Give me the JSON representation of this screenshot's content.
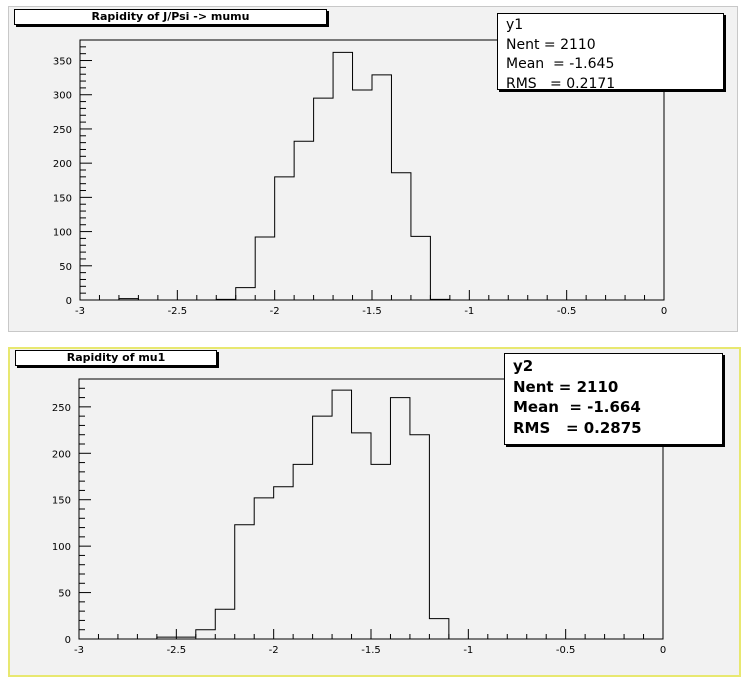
{
  "charts": [
    {
      "title": "Rapidity of J/Psi -> mumu",
      "stats": {
        "name": "y1",
        "nent": "Nent = 2110",
        "mean": "Mean  = -1.645",
        "rms": "RMS   = 0.2171"
      }
    },
    {
      "title": "Rapidity of mu1",
      "stats": {
        "name": "y2",
        "nent": "Nent = 2110",
        "mean": "Mean  = -1.664",
        "rms": "RMS   = 0.2875"
      }
    }
  ],
  "chart_data": [
    {
      "type": "histogram",
      "title": "Rapidity of J/Psi -> mumu",
      "xlabel": "",
      "ylabel": "",
      "xlim": [
        -3,
        0
      ],
      "ylim": [
        0,
        380
      ],
      "bin_edges": [
        -3.0,
        -2.9,
        -2.8,
        -2.7,
        -2.6,
        -2.5,
        -2.4,
        -2.3,
        -2.2,
        -2.1,
        -2.0,
        -1.9,
        -1.8,
        -1.7,
        -1.6,
        -1.5,
        -1.4,
        -1.3,
        -1.2,
        -1.1,
        -1.0,
        -0.9,
        -0.8,
        -0.7,
        -0.6,
        -0.5,
        -0.4,
        -0.3,
        -0.2,
        -0.1,
        0.0
      ],
      "values": [
        0,
        0,
        2,
        0,
        0,
        0,
        0,
        1,
        18,
        92,
        180,
        232,
        295,
        362,
        307,
        329,
        186,
        93,
        1,
        0,
        0,
        0,
        0,
        0,
        0,
        0,
        0,
        0,
        0,
        0
      ],
      "xticks": [
        "-3",
        "-2.5",
        "-2",
        "-1.5",
        "-1",
        "-0.5",
        "0"
      ],
      "yticks": [
        "0",
        "50",
        "100",
        "150",
        "200",
        "250",
        "300",
        "350"
      ],
      "ytick_values": [
        0,
        50,
        100,
        150,
        200,
        250,
        300,
        350
      ]
    },
    {
      "type": "histogram",
      "title": "Rapidity of mu1",
      "xlabel": "",
      "ylabel": "",
      "xlim": [
        -3,
        0
      ],
      "ylim": [
        0,
        280
      ],
      "bin_edges": [
        -3.0,
        -2.9,
        -2.8,
        -2.7,
        -2.6,
        -2.5,
        -2.4,
        -2.3,
        -2.2,
        -2.1,
        -2.0,
        -1.9,
        -1.8,
        -1.7,
        -1.6,
        -1.5,
        -1.4,
        -1.3,
        -1.2,
        -1.1,
        -1.0,
        -0.9,
        -0.8,
        -0.7,
        -0.6,
        -0.5,
        -0.4,
        -0.3,
        -0.2,
        -0.1,
        0.0
      ],
      "values": [
        0,
        0,
        0,
        0,
        2,
        2,
        10,
        32,
        123,
        152,
        164,
        188,
        240,
        268,
        222,
        188,
        260,
        220,
        22,
        0,
        0,
        0,
        0,
        0,
        0,
        0,
        0,
        0,
        0,
        0
      ],
      "xticks": [
        "-3",
        "-2.5",
        "-2",
        "-1.5",
        "-1",
        "-0.5",
        "0"
      ],
      "yticks": [
        "0",
        "50",
        "100",
        "150",
        "200",
        "250"
      ],
      "ytick_values": [
        0,
        50,
        100,
        150,
        200,
        250
      ]
    }
  ]
}
